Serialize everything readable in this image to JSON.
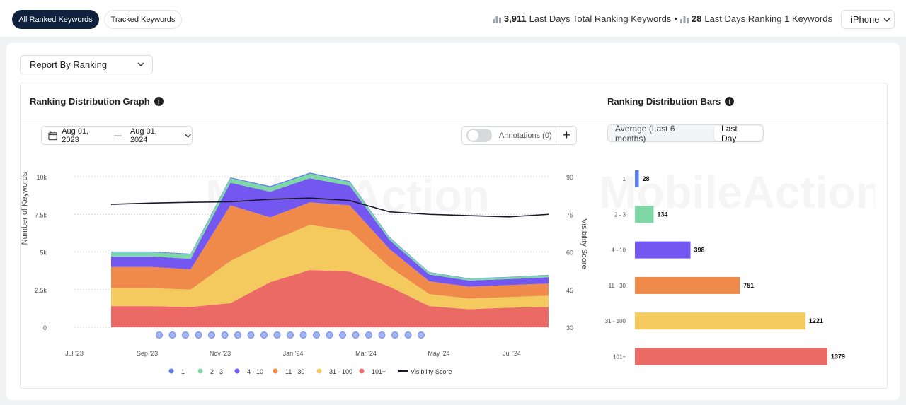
{
  "tabs": {
    "all_ranked": "All Ranked Keywords",
    "tracked": "Tracked Keywords"
  },
  "stats": {
    "total_value": "3,911",
    "total_label": "Last Days Total Ranking Keywords",
    "separator": "•",
    "rank1_value": "28",
    "rank1_label": "Last Days Ranking 1 Keywords"
  },
  "device": {
    "selected": "iPhone"
  },
  "report": {
    "selected": "Report By Ranking"
  },
  "graph": {
    "title": "Ranking Distribution Graph",
    "date_from": "Aug 01, 2023",
    "date_sep": "—",
    "date_to": "Aug 01, 2024",
    "annotations_label": "Annotations (0)",
    "add_symbol": "+"
  },
  "bars_panel": {
    "title": "Ranking Distribution Bars",
    "option_average": "Average (Last 6 months)",
    "option_last_day": "Last Day"
  },
  "watermark": "MobileAction",
  "colors": {
    "r1": "#5b7ff0",
    "r2_3": "#7dd8a6",
    "r4_10": "#7457f0",
    "r11_30": "#ef8a4a",
    "r31_100": "#f4c95d",
    "r101": "#ec6a66",
    "visibility": "#1a1a2e"
  },
  "chart_data": [
    {
      "type": "area",
      "title": "Ranking Distribution Graph",
      "ylabel": "Number of Keywords",
      "y2label": "Visibility Score",
      "ylim": [
        0,
        10000
      ],
      "y2lim": [
        30,
        90
      ],
      "y_ticks": [
        "0",
        "2.5k",
        "5k",
        "7.5k",
        "10k"
      ],
      "y2_ticks": [
        "30",
        "45",
        "60",
        "75",
        "90"
      ],
      "x_ticks": [
        "Jul '23",
        "Sep '23",
        "Nov '23",
        "Jan '24",
        "Mar '24",
        "May '24",
        "Jul '24"
      ],
      "legend": [
        "1",
        "2 - 3",
        "4 - 10",
        "11 - 30",
        "31 - 100",
        "101+",
        "Visibility Score"
      ],
      "x": [
        "Aug '23",
        "Sep '23",
        "Oct '23",
        "Nov '23",
        "Dec '23",
        "Jan '24",
        "Feb '24",
        "Mar '24",
        "Apr '24",
        "May '24",
        "Jun '24",
        "Jul '24"
      ],
      "series": [
        {
          "name": "101+",
          "values": [
            1400,
            1400,
            1350,
            1600,
            3000,
            3800,
            3700,
            2700,
            1400,
            1200,
            1300,
            1350
          ]
        },
        {
          "name": "31 - 100",
          "values": [
            1200,
            1200,
            1150,
            2800,
            2700,
            3000,
            2700,
            1300,
            800,
            700,
            700,
            750
          ]
        },
        {
          "name": "11 - 30",
          "values": [
            1400,
            1400,
            1350,
            3700,
            1600,
            1500,
            1700,
            1200,
            850,
            800,
            800,
            800
          ]
        },
        {
          "name": "4 - 10",
          "values": [
            700,
            700,
            700,
            1500,
            1700,
            1600,
            1300,
            600,
            450,
            400,
            400,
            420
          ]
        },
        {
          "name": "2 - 3",
          "values": [
            280,
            280,
            280,
            300,
            300,
            300,
            250,
            150,
            130,
            120,
            120,
            134
          ]
        },
        {
          "name": "1",
          "values": [
            50,
            50,
            50,
            60,
            70,
            70,
            55,
            40,
            30,
            30,
            28,
            28
          ]
        }
      ],
      "visibility_score": [
        79,
        79.5,
        79.8,
        80,
        81,
        81.5,
        80.5,
        76,
        75,
        74.5,
        74,
        75
      ]
    },
    {
      "type": "bar",
      "orientation": "horizontal",
      "title": "Ranking Distribution Bars",
      "categories": [
        "1",
        "2 - 3",
        "4 - 10",
        "11 - 30",
        "31 - 100",
        "101+"
      ],
      "values": [
        28,
        134,
        398,
        751,
        1221,
        1379
      ],
      "xlim": [
        0,
        1379
      ]
    }
  ]
}
